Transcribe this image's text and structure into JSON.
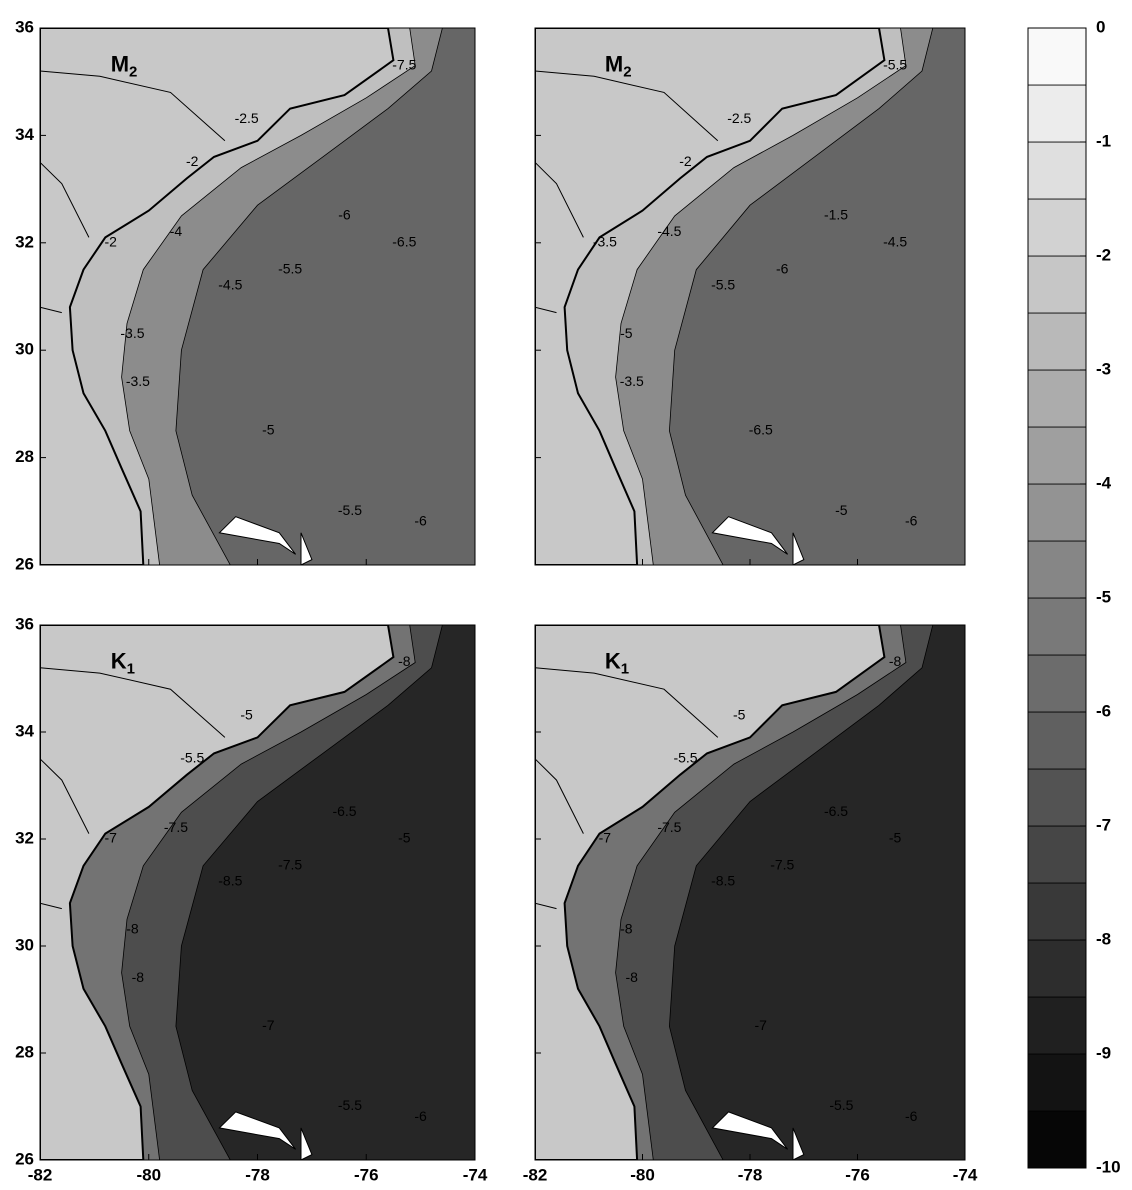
{
  "chart_data": {
    "type": "contour-map",
    "xlim": [
      -82,
      -74
    ],
    "xticks": [
      -82,
      -80,
      -78,
      -76,
      -74
    ],
    "ylim": [
      26,
      36
    ],
    "yticks": [
      26,
      28,
      30,
      32,
      34,
      36
    ],
    "panels": [
      {
        "label": "M",
        "label_sub": "2",
        "contour_labels": [
          -2.5,
          -2,
          -2,
          -4,
          -3.5,
          -4.5,
          -5.5,
          -5,
          -6,
          -6.5,
          -7.5,
          -5.5,
          -6,
          -3.5
        ]
      },
      {
        "label": "M",
        "label_sub": "2",
        "contour_labels": [
          -2.5,
          -2,
          -3.5,
          -4.5,
          -5,
          -5.5,
          -6,
          -6.5,
          -1.5,
          -4.5,
          -5.5,
          -5,
          -6,
          -3.5
        ]
      },
      {
        "label": "K",
        "label_sub": "1",
        "contour_labels": [
          -5,
          -5.5,
          -7,
          -7.5,
          -8,
          -8.5,
          -7.5,
          -7,
          -6.5,
          -5,
          -8,
          -5.5,
          -6,
          -8
        ]
      },
      {
        "label": "K",
        "label_sub": "1",
        "contour_labels": [
          -5,
          -5.5,
          -7,
          -7.5,
          -8,
          -8.5,
          -7.5,
          -7,
          -6.5,
          -5,
          -8,
          -5.5,
          -6,
          -8
        ]
      }
    ],
    "colorbar": {
      "lim": [
        -10,
        0
      ],
      "ticks": [
        0,
        -1,
        -2,
        -3,
        -4,
        -5,
        -6,
        -7,
        -8,
        -9,
        -10
      ],
      "step": 0.5
    }
  }
}
